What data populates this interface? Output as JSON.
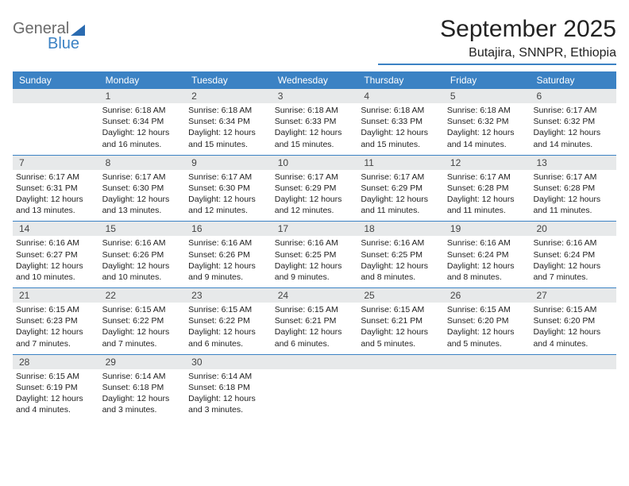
{
  "branding": {
    "logo_word1": "General",
    "logo_word2": "Blue"
  },
  "header": {
    "month_title": "September 2025",
    "location": "Butajira, SNNPR, Ethiopia"
  },
  "colors": {
    "header_bar": "#3b82c4",
    "daynum_bg": "#e7e9ea",
    "rule": "#3b82c4",
    "text": "#222222",
    "logo_gray": "#6a6a6a",
    "logo_blue": "#3b82c4"
  },
  "days_of_week": [
    "Sunday",
    "Monday",
    "Tuesday",
    "Wednesday",
    "Thursday",
    "Friday",
    "Saturday"
  ],
  "weeks": [
    [
      {
        "day": null
      },
      {
        "day": 1,
        "sunrise": "Sunrise: 6:18 AM",
        "sunset": "Sunset: 6:34 PM",
        "daylight": "Daylight: 12 hours and 16 minutes."
      },
      {
        "day": 2,
        "sunrise": "Sunrise: 6:18 AM",
        "sunset": "Sunset: 6:34 PM",
        "daylight": "Daylight: 12 hours and 15 minutes."
      },
      {
        "day": 3,
        "sunrise": "Sunrise: 6:18 AM",
        "sunset": "Sunset: 6:33 PM",
        "daylight": "Daylight: 12 hours and 15 minutes."
      },
      {
        "day": 4,
        "sunrise": "Sunrise: 6:18 AM",
        "sunset": "Sunset: 6:33 PM",
        "daylight": "Daylight: 12 hours and 15 minutes."
      },
      {
        "day": 5,
        "sunrise": "Sunrise: 6:18 AM",
        "sunset": "Sunset: 6:32 PM",
        "daylight": "Daylight: 12 hours and 14 minutes."
      },
      {
        "day": 6,
        "sunrise": "Sunrise: 6:17 AM",
        "sunset": "Sunset: 6:32 PM",
        "daylight": "Daylight: 12 hours and 14 minutes."
      }
    ],
    [
      {
        "day": 7,
        "sunrise": "Sunrise: 6:17 AM",
        "sunset": "Sunset: 6:31 PM",
        "daylight": "Daylight: 12 hours and 13 minutes."
      },
      {
        "day": 8,
        "sunrise": "Sunrise: 6:17 AM",
        "sunset": "Sunset: 6:30 PM",
        "daylight": "Daylight: 12 hours and 13 minutes."
      },
      {
        "day": 9,
        "sunrise": "Sunrise: 6:17 AM",
        "sunset": "Sunset: 6:30 PM",
        "daylight": "Daylight: 12 hours and 12 minutes."
      },
      {
        "day": 10,
        "sunrise": "Sunrise: 6:17 AM",
        "sunset": "Sunset: 6:29 PM",
        "daylight": "Daylight: 12 hours and 12 minutes."
      },
      {
        "day": 11,
        "sunrise": "Sunrise: 6:17 AM",
        "sunset": "Sunset: 6:29 PM",
        "daylight": "Daylight: 12 hours and 11 minutes."
      },
      {
        "day": 12,
        "sunrise": "Sunrise: 6:17 AM",
        "sunset": "Sunset: 6:28 PM",
        "daylight": "Daylight: 12 hours and 11 minutes."
      },
      {
        "day": 13,
        "sunrise": "Sunrise: 6:17 AM",
        "sunset": "Sunset: 6:28 PM",
        "daylight": "Daylight: 12 hours and 11 minutes."
      }
    ],
    [
      {
        "day": 14,
        "sunrise": "Sunrise: 6:16 AM",
        "sunset": "Sunset: 6:27 PM",
        "daylight": "Daylight: 12 hours and 10 minutes."
      },
      {
        "day": 15,
        "sunrise": "Sunrise: 6:16 AM",
        "sunset": "Sunset: 6:26 PM",
        "daylight": "Daylight: 12 hours and 10 minutes."
      },
      {
        "day": 16,
        "sunrise": "Sunrise: 6:16 AM",
        "sunset": "Sunset: 6:26 PM",
        "daylight": "Daylight: 12 hours and 9 minutes."
      },
      {
        "day": 17,
        "sunrise": "Sunrise: 6:16 AM",
        "sunset": "Sunset: 6:25 PM",
        "daylight": "Daylight: 12 hours and 9 minutes."
      },
      {
        "day": 18,
        "sunrise": "Sunrise: 6:16 AM",
        "sunset": "Sunset: 6:25 PM",
        "daylight": "Daylight: 12 hours and 8 minutes."
      },
      {
        "day": 19,
        "sunrise": "Sunrise: 6:16 AM",
        "sunset": "Sunset: 6:24 PM",
        "daylight": "Daylight: 12 hours and 8 minutes."
      },
      {
        "day": 20,
        "sunrise": "Sunrise: 6:16 AM",
        "sunset": "Sunset: 6:24 PM",
        "daylight": "Daylight: 12 hours and 7 minutes."
      }
    ],
    [
      {
        "day": 21,
        "sunrise": "Sunrise: 6:15 AM",
        "sunset": "Sunset: 6:23 PM",
        "daylight": "Daylight: 12 hours and 7 minutes."
      },
      {
        "day": 22,
        "sunrise": "Sunrise: 6:15 AM",
        "sunset": "Sunset: 6:22 PM",
        "daylight": "Daylight: 12 hours and 7 minutes."
      },
      {
        "day": 23,
        "sunrise": "Sunrise: 6:15 AM",
        "sunset": "Sunset: 6:22 PM",
        "daylight": "Daylight: 12 hours and 6 minutes."
      },
      {
        "day": 24,
        "sunrise": "Sunrise: 6:15 AM",
        "sunset": "Sunset: 6:21 PM",
        "daylight": "Daylight: 12 hours and 6 minutes."
      },
      {
        "day": 25,
        "sunrise": "Sunrise: 6:15 AM",
        "sunset": "Sunset: 6:21 PM",
        "daylight": "Daylight: 12 hours and 5 minutes."
      },
      {
        "day": 26,
        "sunrise": "Sunrise: 6:15 AM",
        "sunset": "Sunset: 6:20 PM",
        "daylight": "Daylight: 12 hours and 5 minutes."
      },
      {
        "day": 27,
        "sunrise": "Sunrise: 6:15 AM",
        "sunset": "Sunset: 6:20 PM",
        "daylight": "Daylight: 12 hours and 4 minutes."
      }
    ],
    [
      {
        "day": 28,
        "sunrise": "Sunrise: 6:15 AM",
        "sunset": "Sunset: 6:19 PM",
        "daylight": "Daylight: 12 hours and 4 minutes."
      },
      {
        "day": 29,
        "sunrise": "Sunrise: 6:14 AM",
        "sunset": "Sunset: 6:18 PM",
        "daylight": "Daylight: 12 hours and 3 minutes."
      },
      {
        "day": 30,
        "sunrise": "Sunrise: 6:14 AM",
        "sunset": "Sunset: 6:18 PM",
        "daylight": "Daylight: 12 hours and 3 minutes."
      },
      {
        "day": null
      },
      {
        "day": null
      },
      {
        "day": null
      },
      {
        "day": null
      }
    ]
  ]
}
